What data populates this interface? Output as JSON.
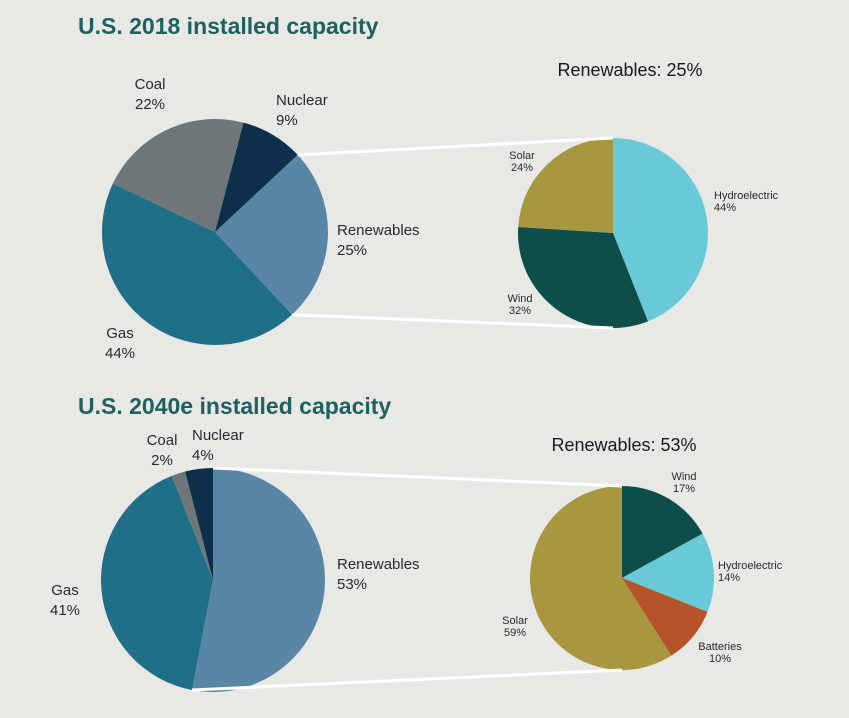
{
  "chart_data": [
    {
      "type": "pie",
      "title": "U.S. 2018 installed capacity",
      "categories": [
        "Renewables",
        "Gas",
        "Coal",
        "Nuclear"
      ],
      "values": [
        25,
        44,
        22,
        9
      ],
      "value_labels": [
        "25%",
        "44%",
        "22%",
        "9%"
      ],
      "colors": [
        "#5a86a6",
        "#1e6f87",
        "#6f7679",
        "#0d2f4b"
      ]
    },
    {
      "type": "pie",
      "title": "Renewables: 25%",
      "categories": [
        "Hydroelectric",
        "Wind",
        "Solar"
      ],
      "values": [
        44,
        32,
        24
      ],
      "value_labels": [
        "44%",
        "32%",
        "24%"
      ],
      "colors": [
        "#69c9d6",
        "#0d4d4a",
        "#a8973f"
      ]
    },
    {
      "type": "pie",
      "title": "U.S. 2040e installed capacity",
      "categories": [
        "Renewables",
        "Gas",
        "Coal",
        "Nuclear"
      ],
      "values": [
        53,
        41,
        2,
        4
      ],
      "value_labels": [
        "53%",
        "41%",
        "2%",
        "4%"
      ],
      "colors": [
        "#5a86a6",
        "#1e6f87",
        "#6f7679",
        "#0d2f4b"
      ]
    },
    {
      "type": "pie",
      "title": "Renewables: 53%",
      "categories": [
        "Wind",
        "Hydroelectric",
        "Batteries",
        "Solar"
      ],
      "values": [
        17,
        14,
        10,
        59
      ],
      "value_labels": [
        "17%",
        "14%",
        "10%",
        "59%"
      ],
      "colors": [
        "#0d4d4a",
        "#69c9d6",
        "#b5532a",
        "#a8973f"
      ]
    }
  ]
}
